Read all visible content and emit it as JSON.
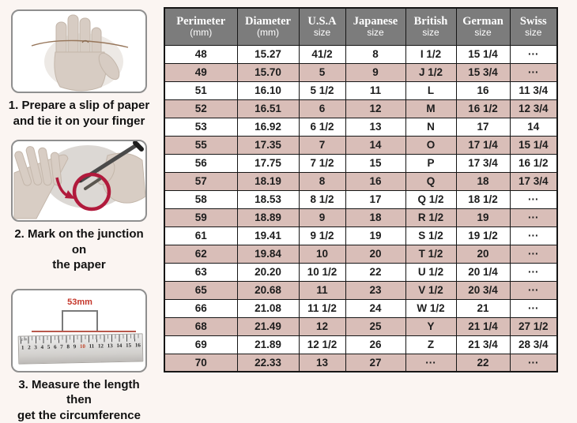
{
  "chart_data": {
    "type": "table",
    "columns": [
      "Perimeter (mm)",
      "Diameter (mm)",
      "U.S.A size",
      "Japanese size",
      "British size",
      "German size",
      "Swiss size"
    ],
    "rows": [
      [
        "48",
        "15.27",
        "41/2",
        "8",
        "I 1/2",
        "15 1/4",
        "···"
      ],
      [
        "49",
        "15.70",
        "5",
        "9",
        "J 1/2",
        "15 3/4",
        "···"
      ],
      [
        "51",
        "16.10",
        "5 1/2",
        "11",
        "L",
        "16",
        "11 3/4"
      ],
      [
        "52",
        "16.51",
        "6",
        "12",
        "M",
        "16 1/2",
        "12 3/4"
      ],
      [
        "53",
        "16.92",
        "6 1/2",
        "13",
        "N",
        "17",
        "14"
      ],
      [
        "55",
        "17.35",
        "7",
        "14",
        "O",
        "17 1/4",
        "15 1/4"
      ],
      [
        "56",
        "17.75",
        "7 1/2",
        "15",
        "P",
        "17 3/4",
        "16 1/2"
      ],
      [
        "57",
        "18.19",
        "8",
        "16",
        "Q",
        "18",
        "17 3/4"
      ],
      [
        "58",
        "18.53",
        "8 1/2",
        "17",
        "Q 1/2",
        "18 1/2",
        "···"
      ],
      [
        "59",
        "18.89",
        "9",
        "18",
        "R 1/2",
        "19",
        "···"
      ],
      [
        "61",
        "19.41",
        "9 1/2",
        "19",
        "S 1/2",
        "19 1/2",
        "···"
      ],
      [
        "62",
        "19.84",
        "10",
        "20",
        "T 1/2",
        "20",
        "···"
      ],
      [
        "63",
        "20.20",
        "10 1/2",
        "22",
        "U 1/2",
        "20 1/4",
        "···"
      ],
      [
        "65",
        "20.68",
        "11",
        "23",
        "V 1/2",
        "20 3/4",
        "···"
      ],
      [
        "66",
        "21.08",
        "11 1/2",
        "24",
        "W 1/2",
        "21",
        "···"
      ],
      [
        "68",
        "21.49",
        "12",
        "25",
        "Y",
        "21 1/4",
        "27 1/2"
      ],
      [
        "69",
        "21.89",
        "12 1/2",
        "26",
        "Z",
        "21 3/4",
        "28 3/4"
      ],
      [
        "70",
        "22.33",
        "13",
        "27",
        "···",
        "22",
        "···"
      ]
    ]
  },
  "table": {
    "columns_two_line": [
      {
        "line1": "Perimeter",
        "line2": "(mm)"
      },
      {
        "line1": "Diameter",
        "line2": "(mm)"
      },
      {
        "line1": "U.S.A",
        "line2": "size"
      },
      {
        "line1": "Japanese",
        "line2": "size"
      },
      {
        "line1": "British",
        "line2": "size"
      },
      {
        "line1": "German",
        "line2": "size"
      },
      {
        "line1": "Swiss",
        "line2": "size"
      }
    ]
  },
  "steps": [
    {
      "caption_line1": "1. Prepare a slip of paper",
      "caption_line2": "and tie it on your finger",
      "image": "hand-with-paper-strip"
    },
    {
      "caption_line1": "2. Mark on the junction on",
      "caption_line2": "the paper",
      "image": "hand-marking-with-pen"
    },
    {
      "caption_line1": "3. Measure the length then",
      "caption_line2": "get the circumference",
      "image": "ruler-measuring-strip",
      "ruler": {
        "label": "53mm",
        "unit": "cm",
        "numbers": [
          1,
          2,
          3,
          4,
          5,
          6,
          7,
          8,
          9,
          10,
          11,
          12,
          13,
          14,
          15,
          16
        ],
        "red_number": 10
      }
    }
  ],
  "colors": {
    "header_bg": "#7c7c7c",
    "header_text": "#ffffff",
    "row_alt_bg": "#d9beb8",
    "row_bg": "#ffffff",
    "grid_border": "#161616",
    "accent_red_circle": "#b11a3c",
    "ruler_line_red": "#b8584c",
    "label_red": "#c5372b",
    "page_bg": "#fbf5f2"
  }
}
